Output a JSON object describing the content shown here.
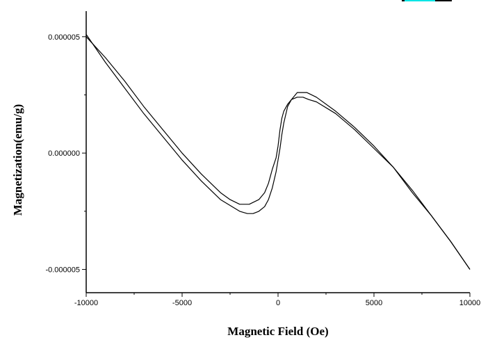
{
  "chart_data": {
    "type": "line",
    "title": "",
    "xlabel": "Magnetic Field (Oe)",
    "ylabel": "Magnetization(emu/g)",
    "xlim": [
      -10000,
      10000
    ],
    "ylim": [
      -6e-06,
      6.1e-06
    ],
    "xticks": [
      -10000,
      -5000,
      0,
      5000,
      10000
    ],
    "xtick_labels": [
      "-10000",
      "-5000",
      "0",
      "5000",
      "10000"
    ],
    "yticks": [
      -5e-06,
      0.0,
      5e-06
    ],
    "ytick_labels": [
      "-0.000005",
      "0.000000",
      "0.000005"
    ],
    "grid": false,
    "legend": "none",
    "line_color": "#000000",
    "series": [
      {
        "x": [
          -10000,
          -9000,
          -8000,
          -7000,
          -6000,
          -5000,
          -4000,
          -3000,
          -2500,
          -2000,
          -1500,
          -1000,
          -700,
          -500,
          -300,
          -100,
          0,
          100,
          200,
          300,
          500,
          700,
          1000,
          1300,
          1600,
          2000,
          3000,
          4000,
          5000,
          6000,
          7000,
          8000,
          9000,
          10000
        ],
        "values": [
          5e-06,
          4.1e-06,
          3.1e-06,
          2e-06,
          1e-06,
          0.0,
          -9e-07,
          -1.7e-06,
          -2e-06,
          -2.2e-06,
          -2.2e-06,
          -2e-06,
          -1.7e-06,
          -1.3e-06,
          -7e-07,
          -2e-07,
          3e-07,
          1e-06,
          1.5e-06,
          1.8e-06,
          2.1e-06,
          2.3e-06,
          2.4e-06,
          2.4e-06,
          2.3e-06,
          2.2e-06,
          1.7e-06,
          1e-06,
          2e-07,
          -6e-07,
          -1.7e-06,
          -2.7e-06,
          -3.8e-06,
          -5e-06
        ]
      },
      {
        "x": [
          10000,
          9000,
          8000,
          7000,
          6000,
          5000,
          4000,
          3000,
          2000,
          1500,
          1000,
          700,
          500,
          300,
          200,
          100,
          0,
          -100,
          -300,
          -500,
          -700,
          -1000,
          -1300,
          -1600,
          -2000,
          -3000,
          -4000,
          -5000,
          -6000,
          -7000,
          -8000,
          -9000,
          -10000
        ],
        "values": [
          -5e-06,
          -3.8e-06,
          -2.7e-06,
          -1.6e-06,
          -6e-07,
          3e-07,
          1.1e-06,
          1.8e-06,
          2.4e-06,
          2.6e-06,
          2.6e-06,
          2.3e-06,
          2e-06,
          1.3e-06,
          8e-07,
          2e-07,
          -3e-07,
          -8e-07,
          -1.5e-06,
          -2e-06,
          -2.3e-06,
          -2.5e-06,
          -2.6e-06,
          -2.6e-06,
          -2.5e-06,
          -2e-06,
          -1.2e-06,
          -3e-07,
          7e-07,
          1.7e-06,
          2.8e-06,
          3.9e-06,
          5.1e-06
        ]
      }
    ]
  }
}
